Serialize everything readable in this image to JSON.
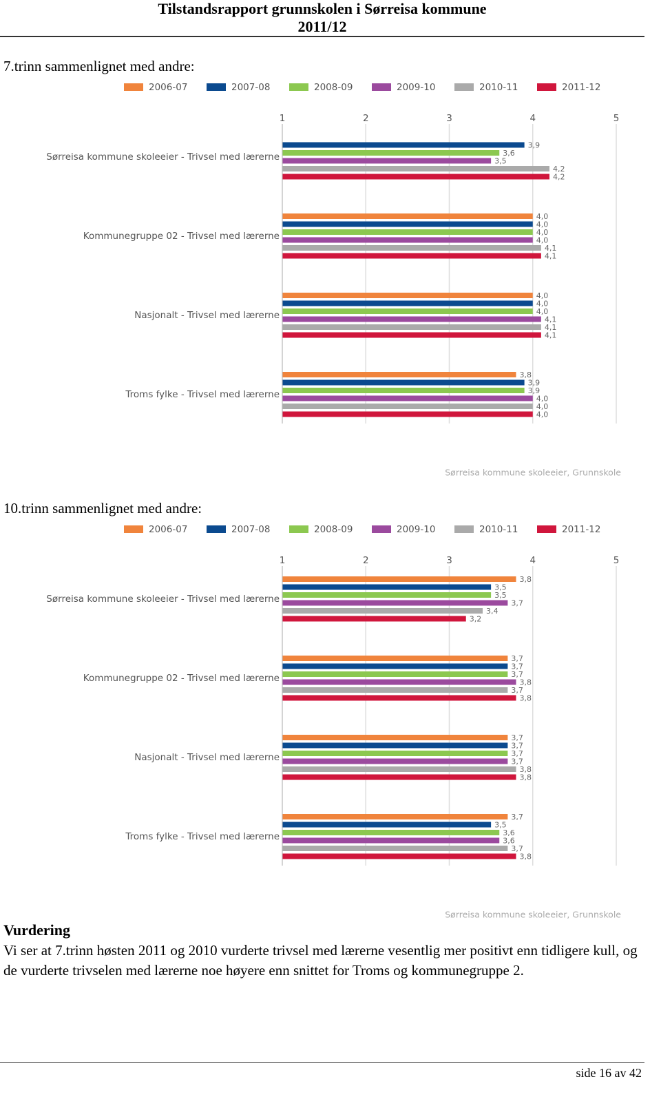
{
  "header": {
    "title": "Tilstandsrapport grunnskolen i Sørreisa kommune",
    "subtitle": "2011/12"
  },
  "chart_data": [
    {
      "type": "bar",
      "orientation": "horizontal",
      "title": "7.trinn sammenlignet med andre:",
      "source": "Sørreisa kommune skoleeier, Grunnskole",
      "categories": [
        "Sørreisa kommune skoleeier - Trivsel med lærerne",
        "Kommunegruppe 02 - Trivsel med lærerne",
        "Nasjonalt - Trivsel med lærerne",
        "Troms fylke - Trivsel med lærerne"
      ],
      "xlim": [
        1,
        5
      ],
      "xticks": [
        1,
        2,
        3,
        4,
        5
      ],
      "grid": true,
      "series": [
        {
          "name": "2006-07",
          "color": "#f0843c",
          "values": [
            null,
            4.0,
            4.0,
            3.8
          ],
          "value_labels": [
            null,
            "4,0",
            "4,0",
            "3,8"
          ]
        },
        {
          "name": "2007-08",
          "color": "#0b4a8f",
          "values": [
            3.9,
            4.0,
            4.0,
            3.9
          ],
          "value_labels": [
            "3,9",
            "4,0",
            "4,0",
            "3,9"
          ]
        },
        {
          "name": "2008-09",
          "color": "#8cc850",
          "values": [
            3.6,
            4.0,
            4.0,
            3.9
          ],
          "value_labels": [
            "3,6",
            "4,0",
            "4,0",
            "3,9"
          ]
        },
        {
          "name": "2009-10",
          "color": "#9b4a9e",
          "values": [
            3.5,
            4.0,
            4.1,
            4.0
          ],
          "value_labels": [
            "3,5",
            "4,0",
            "4,1",
            "4,0"
          ]
        },
        {
          "name": "2010-11",
          "color": "#aaaaaa",
          "values": [
            4.2,
            4.1,
            4.1,
            4.0
          ],
          "value_labels": [
            "4,2",
            "4,1",
            "4,1",
            "4,0"
          ]
        },
        {
          "name": "2011-12",
          "color": "#d0163c",
          "values": [
            4.2,
            4.1,
            4.1,
            4.0
          ],
          "value_labels": [
            "4,2",
            "4,1",
            "4,1",
            "4,0"
          ]
        }
      ]
    },
    {
      "type": "bar",
      "orientation": "horizontal",
      "title": "10.trinn sammenlignet med andre:",
      "source": "Sørreisa kommune skoleeier, Grunnskole",
      "categories": [
        "Sørreisa kommune skoleeier - Trivsel med lærerne",
        "Kommunegruppe 02 - Trivsel med lærerne",
        "Nasjonalt - Trivsel med lærerne",
        "Troms fylke - Trivsel med lærerne"
      ],
      "xlim": [
        1,
        5
      ],
      "xticks": [
        1,
        2,
        3,
        4,
        5
      ],
      "grid": true,
      "series": [
        {
          "name": "2006-07",
          "color": "#f0843c",
          "values": [
            3.8,
            3.7,
            3.7,
            3.7
          ],
          "value_labels": [
            "3,8",
            "3,7",
            "3,7",
            "3,7"
          ]
        },
        {
          "name": "2007-08",
          "color": "#0b4a8f",
          "values": [
            3.5,
            3.7,
            3.7,
            3.5
          ],
          "value_labels": [
            "3,5",
            "3,7",
            "3,7",
            "3,5"
          ]
        },
        {
          "name": "2008-09",
          "color": "#8cc850",
          "values": [
            3.5,
            3.7,
            3.7,
            3.6
          ],
          "value_labels": [
            "3,5",
            "3,7",
            "3,7",
            "3,6"
          ]
        },
        {
          "name": "2009-10",
          "color": "#9b4a9e",
          "values": [
            3.7,
            3.8,
            3.7,
            3.6
          ],
          "value_labels": [
            "3,7",
            "3,8",
            "3,7",
            "3,6"
          ]
        },
        {
          "name": "2010-11",
          "color": "#aaaaaa",
          "values": [
            3.4,
            3.7,
            3.8,
            3.7
          ],
          "value_labels": [
            "3,4",
            "3,7",
            "3,8",
            "3,7"
          ]
        },
        {
          "name": "2011-12",
          "color": "#d0163c",
          "values": [
            3.2,
            3.8,
            3.8,
            3.8
          ],
          "value_labels": [
            "3,2",
            "3,8",
            "3,8",
            "3,8"
          ]
        }
      ]
    }
  ],
  "assessment": {
    "heading": "Vurdering",
    "text": "Vi ser at 7.trinn høsten 2011 og 2010 vurderte trivsel med lærerne vesentlig mer positivt enn tidligere kull, og de vurderte trivselen med lærerne noe høyere enn snittet for Troms og kommunegruppe 2."
  },
  "footer": {
    "page": "side 16 av 42"
  }
}
